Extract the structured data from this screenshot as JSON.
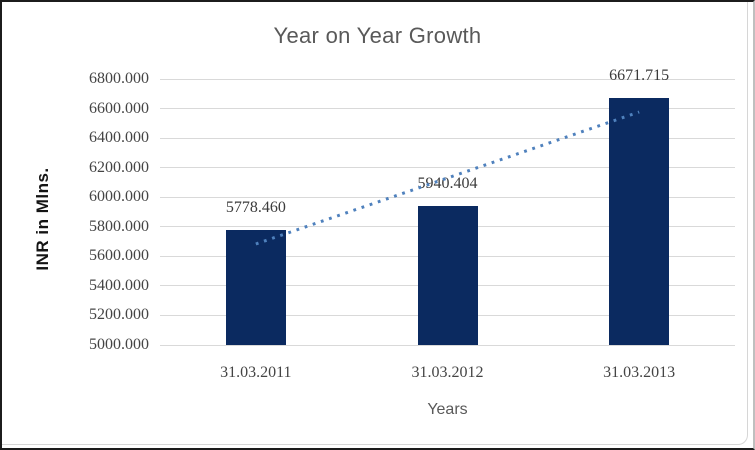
{
  "chart_data": {
    "type": "bar",
    "title": "Year on Year Growth",
    "xlabel": "Years",
    "ylabel": "INR in Mlns.",
    "categories": [
      "31.03.2011",
      "31.03.2012",
      "31.03.2013"
    ],
    "values": [
      5778.46,
      5940.404,
      6671.715
    ],
    "data_labels": [
      "5778.460",
      "5940.404",
      "6671.715"
    ],
    "ylim": [
      5000,
      6800
    ],
    "ytick_step": 200,
    "ytick_labels": [
      "5000.000",
      "5200.000",
      "5400.000",
      "5600.000",
      "5800.000",
      "6000.000",
      "6200.000",
      "6400.000",
      "6600.000",
      "6800.000"
    ],
    "grid": true,
    "legend": "none",
    "trendline": {
      "type": "linear",
      "style": "dotted",
      "color": "#4f81bd"
    },
    "colors": {
      "bar": "#0b2a60",
      "gridline": "#d9d9d9",
      "title": "#595959",
      "tick_text": "#444444",
      "data_label_text": "#3b3b3b",
      "background": "#ffffff"
    }
  }
}
